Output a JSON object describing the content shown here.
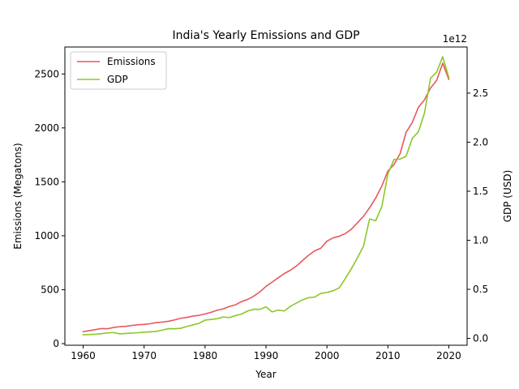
{
  "chart_data": {
    "type": "line",
    "title": "India's Yearly Emissions and GDP",
    "xlabel": "Year",
    "ylabel_left": "Emissions (Megatons)",
    "ylabel_right": "GDP (USD)",
    "right_axis_offset_label": "1e12",
    "xlim": [
      1957,
      2023
    ],
    "ylim_left": [
      -15,
      2750
    ],
    "ylim_right": [
      -0.07,
      2.97
    ],
    "x_ticks": [
      1960,
      1970,
      1980,
      1990,
      2000,
      2010,
      2020
    ],
    "y_ticks_left": [
      0,
      500,
      1000,
      1500,
      2000,
      2500
    ],
    "y_ticks_right": [
      0.0,
      0.5,
      1.0,
      1.5,
      2.0,
      2.5
    ],
    "y_tick_labels_right": [
      "0.0",
      "0.5",
      "1.0",
      "1.5",
      "2.0",
      "2.5"
    ],
    "legend_position": "top-left",
    "grid": false,
    "series": [
      {
        "name": "Emissions",
        "axis": "left",
        "color": "#e8575e",
        "x": [
          1960,
          1961,
          1962,
          1963,
          1964,
          1965,
          1966,
          1967,
          1968,
          1969,
          1970,
          1971,
          1972,
          1973,
          1974,
          1975,
          1976,
          1977,
          1978,
          1979,
          1980,
          1981,
          1982,
          1983,
          1984,
          1985,
          1986,
          1987,
          1988,
          1989,
          1990,
          1991,
          1992,
          1993,
          1994,
          1995,
          1996,
          1997,
          1998,
          1999,
          2000,
          2001,
          2002,
          2003,
          2004,
          2005,
          2006,
          2007,
          2008,
          2009,
          2010,
          2011,
          2012,
          2013,
          2014,
          2015,
          2016,
          2017,
          2018,
          2019,
          2020
        ],
        "values": [
          111,
          120,
          130,
          140,
          138,
          150,
          157,
          160,
          168,
          175,
          178,
          185,
          195,
          200,
          207,
          220,
          235,
          243,
          255,
          262,
          275,
          290,
          310,
          322,
          345,
          360,
          390,
          410,
          440,
          480,
          530,
          570,
          610,
          650,
          680,
          720,
          770,
          820,
          860,
          885,
          950,
          980,
          995,
          1020,
          1060,
          1120,
          1180,
          1260,
          1350,
          1460,
          1600,
          1660,
          1760,
          1960,
          2050,
          2190,
          2260,
          2370,
          2440,
          2600,
          2450
        ]
      },
      {
        "name": "GDP",
        "axis": "right",
        "color": "#8ac926",
        "x": [
          1960,
          1961,
          1962,
          1963,
          1964,
          1965,
          1966,
          1967,
          1968,
          1969,
          1970,
          1971,
          1972,
          1973,
          1974,
          1975,
          1976,
          1977,
          1978,
          1979,
          1980,
          1981,
          1982,
          1983,
          1984,
          1985,
          1986,
          1987,
          1988,
          1989,
          1990,
          1991,
          1992,
          1993,
          1994,
          1995,
          1996,
          1997,
          1998,
          1999,
          2000,
          2001,
          2002,
          2003,
          2004,
          2005,
          2006,
          2007,
          2008,
          2009,
          2010,
          2011,
          2012,
          2013,
          2014,
          2015,
          2016,
          2017,
          2018,
          2019,
          2020
        ],
        "values": [
          0.037,
          0.039,
          0.042,
          0.048,
          0.056,
          0.059,
          0.046,
          0.05,
          0.053,
          0.058,
          0.063,
          0.067,
          0.071,
          0.085,
          0.099,
          0.098,
          0.103,
          0.121,
          0.137,
          0.153,
          0.186,
          0.193,
          0.201,
          0.218,
          0.212,
          0.232,
          0.248,
          0.279,
          0.297,
          0.296,
          0.321,
          0.27,
          0.288,
          0.279,
          0.327,
          0.36,
          0.393,
          0.415,
          0.421,
          0.459,
          0.468,
          0.485,
          0.514,
          0.608,
          0.709,
          0.82,
          0.94,
          1.217,
          1.199,
          1.342,
          1.676,
          1.823,
          1.828,
          1.857,
          2.039,
          2.104,
          2.295,
          2.652,
          2.713,
          2.871,
          2.66
        ]
      }
    ]
  }
}
